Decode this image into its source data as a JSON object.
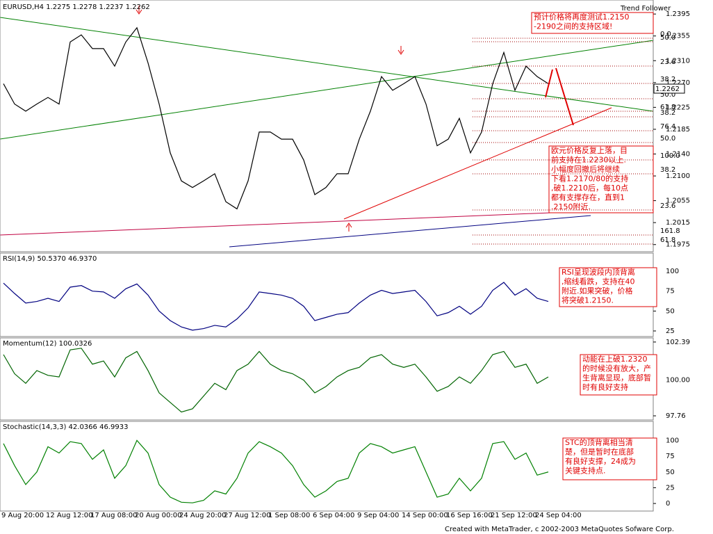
{
  "chart_data": [
    {
      "type": "line",
      "title": "EURUSD,H4  1.2275 1.2278 1.2237 1.2262",
      "indicator": "Trend Follower",
      "last_price_label": "1.2262",
      "color": "#000000",
      "values": [
        1.2268,
        1.2231,
        1.2218,
        1.2231,
        1.2243,
        1.2231,
        1.2344,
        1.2357,
        1.2332,
        1.2332,
        1.23,
        1.2344,
        1.237,
        1.2306,
        1.2231,
        1.2142,
        1.2091,
        1.2079,
        1.2091,
        1.2104,
        1.2053,
        1.204,
        1.2091,
        1.218,
        1.218,
        1.2167,
        1.2167,
        1.2129,
        1.2066,
        1.2079,
        1.2104,
        1.2104,
        1.2167,
        1.2218,
        1.2281,
        1.2256,
        1.2268,
        1.2281,
        1.2231,
        1.2155,
        1.2167,
        1.2205,
        1.2142,
        1.218,
        1.2268,
        1.2325,
        1.2256,
        1.23,
        1.2281,
        1.2268
      ],
      "ylim": [
        1.1962,
        1.2418
      ],
      "yticks": [
        {
          "value": 1.2395,
          "label": "1.2395"
        },
        {
          "value": 1.2355,
          "label": "1.2355"
        },
        {
          "value": 1.231,
          "label": "1.2310"
        },
        {
          "value": 1.227,
          "label": "1.2270"
        },
        {
          "value": 1.2225,
          "label": "1.2225"
        },
        {
          "value": 1.2185,
          "label": "1.2185"
        },
        {
          "value": 1.214,
          "label": "1.2140"
        },
        {
          "value": 1.21,
          "label": "1.2100"
        },
        {
          "value": 1.2055,
          "label": "1.2055"
        },
        {
          "value": 1.2015,
          "label": "1.2015"
        },
        {
          "value": 1.1975,
          "label": "1.1975"
        }
      ],
      "fib_labels": [
        "0.0",
        "50.0",
        "23.6",
        "38.2",
        "50.0",
        "61.8",
        "38.2",
        "76.4",
        "50.0",
        "100.0",
        "38.2",
        "23.6",
        "161.8",
        "61.8"
      ],
      "annotations": [
        {
          "lines": [
            "预计价格将再度测试1.2150",
            "-2190之间的支持区域!"
          ]
        },
        {
          "lines": [
            "欧元价格反复上落，目",
            "前支持在1.2230以上.",
            "小幅度回撤后将继续",
            "下看1.2170/80的支持",
            ",破1.2210后，每10点",
            "都有支撑存在，直到1",
            ".2150附近."
          ]
        }
      ]
    },
    {
      "type": "line",
      "title": "RSI(14,9) 50.5370 46.9370",
      "color": "#000080",
      "values": [
        85,
        72,
        60,
        62,
        66,
        62,
        80,
        82,
        75,
        74,
        66,
        78,
        84,
        70,
        50,
        38,
        30,
        26,
        28,
        32,
        30,
        40,
        54,
        74,
        72,
        70,
        66,
        56,
        38,
        42,
        46,
        48,
        60,
        70,
        76,
        72,
        74,
        76,
        62,
        44,
        48,
        56,
        46,
        56,
        76,
        86,
        70,
        78,
        66,
        62
      ],
      "ylim": [
        18,
        121
      ],
      "yticks": [
        25,
        50,
        75,
        100
      ],
      "annotations": [
        {
          "lines": [
            "RSI呈现波段内顶背离",
            ",缩线看跌，支持在40",
            "附近.如果突破，价格",
            "将突破1.2150."
          ]
        }
      ]
    },
    {
      "type": "line",
      "title": "Momentum(12) 100.0326",
      "color": "#006400",
      "values": [
        101.6,
        100.4,
        99.8,
        100.6,
        100.3,
        100.2,
        101.9,
        102.0,
        101.0,
        101.2,
        100.2,
        101.4,
        101.8,
        100.6,
        99.2,
        98.6,
        98.0,
        98.2,
        99.0,
        99.8,
        99.4,
        100.6,
        101.0,
        101.8,
        101.0,
        100.6,
        100.4,
        100.0,
        99.2,
        99.6,
        100.2,
        100.6,
        100.8,
        101.4,
        101.6,
        101.0,
        100.8,
        101.0,
        100.2,
        99.3,
        99.6,
        100.2,
        99.8,
        100.6,
        101.6,
        101.8,
        100.8,
        101.0,
        99.8,
        100.2
      ],
      "ylim": [
        97.5,
        102.56
      ],
      "yticks": [
        102.39,
        {
          "value": 100,
          "label": "100.00"
        },
        97.76
      ],
      "annotations": [
        {
          "lines": [
            "动能在上破1.2320",
            "的时候没有放大，产",
            "生背离显现，底部暂",
            "时有良好支持"
          ]
        }
      ]
    },
    {
      "type": "line",
      "title": "Stochastic(14,3,3) 42.0366 46.9933",
      "color": "#008000",
      "values": [
        95,
        60,
        30,
        50,
        90,
        80,
        98,
        95,
        70,
        85,
        40,
        60,
        100,
        80,
        30,
        10,
        2,
        1,
        5,
        20,
        15,
        40,
        80,
        98,
        90,
        80,
        60,
        30,
        10,
        20,
        35,
        40,
        80,
        95,
        90,
        80,
        85,
        90,
        50,
        10,
        15,
        40,
        20,
        40,
        95,
        98,
        70,
        80,
        45,
        50
      ],
      "ylim": [
        -12,
        128
      ],
      "yticks": [
        0,
        25,
        50,
        75,
        100
      ],
      "categories": [
        "9 Aug 20:00",
        null,
        null,
        null,
        "12 Aug 12:00",
        null,
        null,
        null,
        "17 Aug 08:00",
        null,
        null,
        null,
        "20 Aug 00:00",
        null,
        null,
        null,
        "24 Aug 20:00",
        null,
        null,
        null,
        "27 Aug 12:00",
        null,
        null,
        null,
        "1 Sep 08:00",
        null,
        null,
        null,
        "6 Sep 04:00",
        null,
        null,
        null,
        "9 Sep 04:00",
        null,
        null,
        null,
        "14 Sep 00:00",
        null,
        null,
        null,
        "16 Sep 16:00",
        null,
        null,
        null,
        "21 Sep 12:00",
        null,
        null,
        null,
        "24 Sep 04:00",
        null
      ],
      "annotations": [
        {
          "lines": [
            "STC的顶背离相当清",
            "楚，但是暂时在底部",
            "有良好支撑，24成为",
            "关键支持点."
          ]
        }
      ]
    }
  ],
  "footer": "Created with MetaTrader, c 2002-2003 MetaQuotes Sofware Corp."
}
